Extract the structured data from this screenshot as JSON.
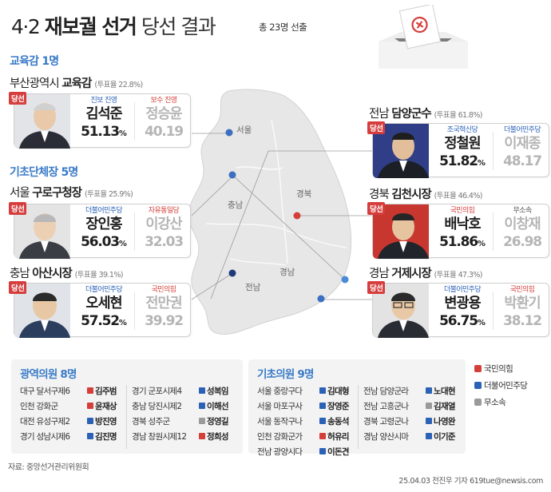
{
  "header": {
    "date": "4·2",
    "title": "재보궐 선거",
    "subtitle": "당선 결과",
    "note": "총 23명 선출"
  },
  "colors": {
    "ppp": "#d43f3a",
    "democratic": "#2b62b6",
    "independent": "#9a9a9a",
    "accent": "#3a7bc8",
    "win_tag": "#d63d3d"
  },
  "edu": {
    "heading": "교육감 1명",
    "race_prefix": "부산광역시",
    "race_main": "교육감",
    "turnout": "(투표율 22.8%)",
    "card": {
      "tag": "당선",
      "w_party": "진보 진영",
      "w_name": "김석준",
      "w_pct": "51.13",
      "w_unit": "%",
      "l_party": "보수 진영",
      "l_name": "정승윤",
      "l_pct": "40.19"
    }
  },
  "local": {
    "heading": "기초단체장 5명",
    "guro": {
      "race_prefix": "서울",
      "race_main": "구로구청장",
      "turnout": "(투표율 25.9%)",
      "tag": "당선",
      "w_party": "더불어민주당",
      "w_name": "장인홍",
      "w_pct": "56.03",
      "w_unit": "%",
      "l_party": "자유통일당",
      "l_name": "이강산",
      "l_pct": "32.03"
    },
    "asan": {
      "race_prefix": "충남",
      "race_main": "아산시장",
      "turnout": "(투표율 39.1%)",
      "tag": "당선",
      "w_party": "더불어민주당",
      "w_name": "오세현",
      "w_pct": "57.52",
      "w_unit": "%",
      "l_party": "국민의힘",
      "l_name": "전만권",
      "l_pct": "39.92"
    },
    "damyang": {
      "race_prefix": "전남",
      "race_main": "담양군수",
      "turnout": "(투표율 61.8%)",
      "tag": "당선",
      "w_party": "조국혁신당",
      "w_name": "정철원",
      "w_pct": "51.82",
      "w_unit": "%",
      "l_party": "더불어민주당",
      "l_name": "이재종",
      "l_pct": "48.17"
    },
    "gimcheon": {
      "race_prefix": "경북",
      "race_main": "김천시장",
      "turnout": "(투표율 46.4%)",
      "tag": "당선",
      "w_party": "국민의힘",
      "w_name": "배낙호",
      "w_pct": "51.86",
      "w_unit": "%",
      "l_party": "무소속",
      "l_name": "이창재",
      "l_pct": "26.98"
    },
    "geoje": {
      "race_prefix": "경남",
      "race_main": "거제시장",
      "turnout": "(투표율 47.3%)",
      "tag": "당선",
      "w_party": "더불어민주당",
      "w_name": "변광용",
      "w_pct": "56.75",
      "w_unit": "%",
      "l_party": "국민의힘",
      "l_name": "박환기",
      "l_pct": "38.12"
    }
  },
  "map_labels": {
    "seoul": "서울",
    "chungnam": "충남",
    "gyeongbuk": "경북",
    "jeonnam": "전남",
    "gyeongnam": "경남"
  },
  "metro": {
    "heading": "광역의원 8명",
    "rows": [
      {
        "district": "대구 달서구제6",
        "party": "ppp",
        "name": "김주범"
      },
      {
        "district": "인천 강화군",
        "party": "ppp",
        "name": "윤재상"
      },
      {
        "district": "대전 유성구제2",
        "party": "democratic",
        "name": "방진영"
      },
      {
        "district": "경기 성남시제6",
        "party": "democratic",
        "name": "김진명"
      },
      {
        "district": "경기 군포시제4",
        "party": "democratic",
        "name": "성복임"
      },
      {
        "district": "충남 당진시제2",
        "party": "democratic",
        "name": "이해선"
      },
      {
        "district": "경북 성주군",
        "party": "independent",
        "name": "정영길"
      },
      {
        "district": "경남 창원시제12",
        "party": "ppp",
        "name": "정희성"
      }
    ]
  },
  "basic": {
    "heading": "기초의원 9명",
    "rows": [
      {
        "district": "서울 중랑구다",
        "party": "democratic",
        "name": "김대형"
      },
      {
        "district": "서울 마포구사",
        "party": "democratic",
        "name": "장영준"
      },
      {
        "district": "서울 동작구나",
        "party": "democratic",
        "name": "송동석"
      },
      {
        "district": "인천 강화군가",
        "party": "ppp",
        "name": "허유리"
      },
      {
        "district": "전남 광양시다",
        "party": "democratic",
        "name": "이돈견"
      },
      {
        "district": "전남 담양군라",
        "party": "democratic",
        "name": "노대현"
      },
      {
        "district": "전남 고흥군나",
        "party": "independent",
        "name": "김재열"
      },
      {
        "district": "경북 고령군나",
        "party": "democratic",
        "name": "나영완"
      },
      {
        "district": "경남 양산시마",
        "party": "democratic",
        "name": "이기준"
      }
    ]
  },
  "legend": [
    {
      "label": "국민의힘",
      "color": "#d43f3a"
    },
    {
      "label": "더불어민주당",
      "color": "#2b62b6"
    },
    {
      "label": "무소속",
      "color": "#9a9a9a"
    }
  ],
  "footer": {
    "source": "자료: 중앙선거관리위원회",
    "credit": "25.04.03 전진우 기자 619tue@newsis.com"
  }
}
